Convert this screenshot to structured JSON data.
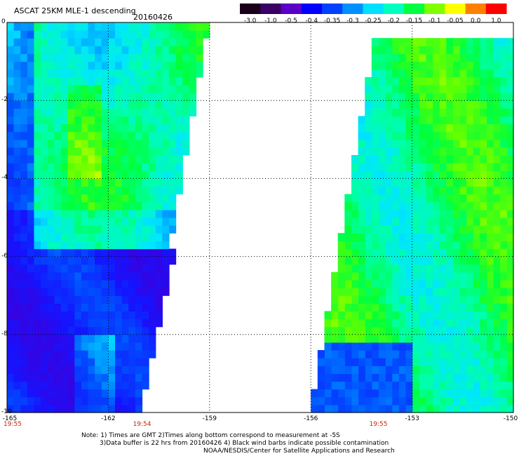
{
  "header": {
    "title": "ASCAT 25KM MLE-1 descending",
    "date": "20160426"
  },
  "colorbar": {
    "labels": [
      "-3.0",
      "-1.0",
      "-0.5",
      "-0.4",
      "-0.35",
      "-0.3",
      "-0.25",
      "-0.2",
      "-0.15",
      "-0.1",
      "-0.05",
      "0.0",
      "1.0"
    ],
    "colors": [
      "#1a001a",
      "#3a0066",
      "#5a00c8",
      "#0000ff",
      "#0040ff",
      "#0090ff",
      "#00e0ff",
      "#00ffc0",
      "#00ff40",
      "#80ff00",
      "#ffff00",
      "#ff8000",
      "#ff0000"
    ]
  },
  "times": [
    {
      "label": "19:55",
      "x": -165
    },
    {
      "label": "19:54",
      "x": -161
    },
    {
      "label": "19:55",
      "x": -154
    }
  ],
  "notes": {
    "line1": "Note: 1) Times are GMT 2)Times along bottom correspond to measurement at -5S",
    "line2": "3)Data buffer is 22 hrs from 20160426 4) Black wind barbs indicate possible contamination",
    "line3": "NOAA/NESDIS/Center for Satellite Applications and Research"
  },
  "chart_data": {
    "type": "heatmap",
    "title": "ASCAT 25KM MLE-1 descending",
    "xlabel": "",
    "ylabel": "",
    "xlim": [
      -165,
      -150
    ],
    "ylim": [
      -10,
      0
    ],
    "x_ticks": [
      "-165",
      "-162",
      "-159",
      "-156",
      "-153",
      "-150"
    ],
    "y_ticks": [
      "0",
      "-2",
      "-4",
      "-6",
      "-8",
      "-10"
    ],
    "grid": true,
    "value_range": [
      -3.0,
      1.0
    ],
    "swaths": [
      {
        "name": "west swath",
        "lon_range": [
          -165,
          -159.0
        ],
        "lat_range": [
          -10,
          0
        ]
      },
      {
        "name": "east swath",
        "lon_range": [
          -155.7,
          -150
        ],
        "lat_range": [
          -10,
          -0.3
        ]
      }
    ]
  }
}
